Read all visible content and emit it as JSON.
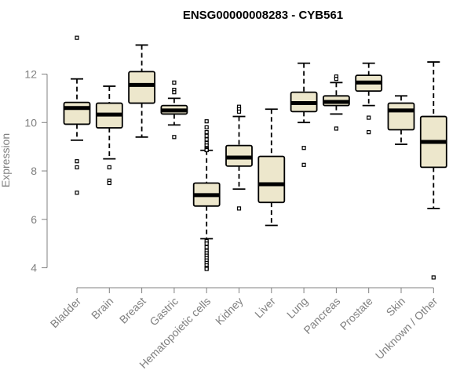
{
  "chart_data": {
    "type": "boxplot",
    "title": "ENSG00000008283 - CYB561",
    "xlabel": "",
    "ylabel": "Expression",
    "ylim": [
      3.5,
      13.7
    ],
    "yticks": [
      4,
      6,
      8,
      10,
      12
    ],
    "colors": {
      "box_fill": "#ede7cc",
      "median": "#000000",
      "axis": "#808080"
    },
    "categories": [
      "Bladder",
      "Brain",
      "Breast",
      "Gastric",
      "Hematopoietic cells",
      "Kidney",
      "Liver",
      "Lung",
      "Pancreas",
      "Prostate",
      "Skin",
      "Unknown / Other"
    ],
    "boxes": [
      {
        "name": "Bladder",
        "q1": 9.93,
        "median": 10.6,
        "q3": 10.83,
        "whisker_low": 9.27,
        "whisker_high": 11.8,
        "outliers": [
          13.5,
          8.4,
          8.15,
          7.1
        ]
      },
      {
        "name": "Brain",
        "q1": 9.78,
        "median": 10.33,
        "q3": 10.8,
        "whisker_low": 8.5,
        "whisker_high": 11.5,
        "outliers": [
          8.15,
          7.6,
          7.5
        ]
      },
      {
        "name": "Breast",
        "q1": 10.8,
        "median": 11.55,
        "q3": 12.1,
        "whisker_low": 9.4,
        "whisker_high": 13.2,
        "outliers": []
      },
      {
        "name": "Gastric",
        "q1": 10.35,
        "median": 10.5,
        "q3": 10.7,
        "whisker_low": 9.9,
        "whisker_high": 11.0,
        "outliers": [
          11.65,
          11.35,
          11.25,
          9.4
        ]
      },
      {
        "name": "Hematopoietic cells",
        "q1": 6.55,
        "median": 7.0,
        "q3": 7.5,
        "whisker_low": 5.2,
        "whisker_high": 8.85,
        "outliers": [
          10.05,
          9.8,
          9.6,
          9.45,
          9.3,
          9.15,
          9.05,
          8.95,
          8.9,
          8.88,
          8.86,
          5.1,
          5.0,
          4.85,
          4.7,
          4.6,
          4.5,
          4.4,
          4.3,
          4.2,
          4.1,
          4.0,
          3.95
        ]
      },
      {
        "name": "Kidney",
        "q1": 8.2,
        "median": 8.55,
        "q3": 9.05,
        "whisker_low": 7.25,
        "whisker_high": 10.25,
        "outliers": [
          10.65,
          10.55,
          10.45,
          6.45
        ]
      },
      {
        "name": "Liver",
        "q1": 6.7,
        "median": 7.45,
        "q3": 8.6,
        "whisker_low": 5.75,
        "whisker_high": 10.55,
        "outliers": []
      },
      {
        "name": "Lung",
        "q1": 10.45,
        "median": 10.8,
        "q3": 11.25,
        "whisker_low": 10.0,
        "whisker_high": 12.45,
        "outliers": [
          8.95,
          8.25
        ]
      },
      {
        "name": "Pancreas",
        "q1": 10.7,
        "median": 10.85,
        "q3": 11.1,
        "whisker_low": 10.35,
        "whisker_high": 11.65,
        "outliers": [
          11.9,
          11.8,
          9.75
        ]
      },
      {
        "name": "Prostate",
        "q1": 11.3,
        "median": 11.65,
        "q3": 11.95,
        "whisker_low": 10.7,
        "whisker_high": 12.45,
        "outliers": [
          10.2,
          9.6
        ]
      },
      {
        "name": "Skin",
        "q1": 9.7,
        "median": 10.5,
        "q3": 10.8,
        "whisker_low": 9.1,
        "whisker_high": 11.1,
        "outliers": []
      },
      {
        "name": "Unknown / Other",
        "q1": 8.15,
        "median": 9.2,
        "q3": 10.25,
        "whisker_low": 6.45,
        "whisker_high": 12.5,
        "outliers": [
          3.6
        ]
      }
    ]
  }
}
